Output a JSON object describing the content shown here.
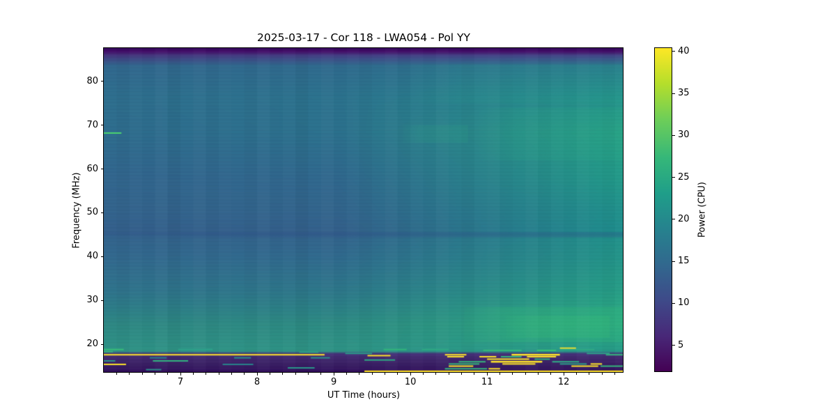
{
  "figure": {
    "title": "2025-03-17 - Cor 118 - LWA054 - Pol YY",
    "xlabel": "UT Time (hours)",
    "ylabel": "Frequency (MHz)",
    "colorbar_label": "Power (CPU)"
  },
  "chart_data": {
    "type": "heatmap",
    "title": "2025-03-17 - Cor 118 - LWA054 - Pol YY",
    "xlabel": "UT Time (hours)",
    "ylabel": "Frequency (MHz)",
    "colormap": "viridis",
    "x_range_hours": [
      6.0,
      12.78
    ],
    "y_range_mhz": [
      13.5,
      87.6
    ],
    "x_ticks": [
      7,
      8,
      9,
      10,
      11,
      12
    ],
    "x_minor_ticks_per_hour": 6,
    "y_ticks": [
      20,
      30,
      40,
      50,
      60,
      70,
      80
    ],
    "grid": false,
    "colorbar": {
      "label": "Power (CPU)",
      "ticks": [
        5,
        10,
        15,
        20,
        25,
        30,
        35,
        40
      ],
      "vmin": 1.9,
      "vmax": 40.4,
      "stops": [
        [
          0,
          "#440154"
        ],
        [
          0.11,
          "#482878"
        ],
        [
          0.22,
          "#3e4a89"
        ],
        [
          0.33,
          "#31688e"
        ],
        [
          0.44,
          "#26828e"
        ],
        [
          0.55,
          "#1f9e89"
        ],
        [
          0.66,
          "#35b779"
        ],
        [
          0.78,
          "#6ece58"
        ],
        [
          0.89,
          "#b5de2b"
        ],
        [
          1,
          "#fde725"
        ]
      ]
    },
    "notable_features": [
      "dark low-power band above ~85 MHz across all times",
      "dark low-power RFI band below ~18 MHz with bright yellow narrowband lines",
      "long yellow RFI line near 17.6 MHz from 6.0 to ~8.9 UT",
      "long yellow RFI line near 13.8 MHz from ~9.4 UT to end",
      "dense yellow/green RFI bursts 14-19 MHz between 10.4 and 12.5 UT",
      "short green emission line near 68 MHz at 6.0-6.2 UT",
      "broadband power increase (greener) toward later times, strongest 20-28 MHz after 10.7 UT",
      "faint dark horizontal lane near 45 MHz"
    ],
    "background_model": {
      "columns": [
        {
          "u": 0.0,
          "stops": [
            [
              87.6,
              "#33075c"
            ],
            [
              86.8,
              "#45106b"
            ],
            [
              85.8,
              "#453a80"
            ],
            [
              83.5,
              "#31688e"
            ],
            [
              76.5,
              "#2e6f8e"
            ],
            [
              68.3,
              "#2e6d8e"
            ],
            [
              58.0,
              "#32668e"
            ],
            [
              50.6,
              "#33648d"
            ],
            [
              45.2,
              "#345f8c"
            ],
            [
              44.8,
              "#33638d"
            ],
            [
              39.4,
              "#326a8e"
            ],
            [
              32.0,
              "#2f748c"
            ],
            [
              28.3,
              "#2d7d88"
            ],
            [
              24.6,
              "#2e8884"
            ],
            [
              20.0,
              "#2e9086"
            ],
            [
              18.4,
              "#2f9386"
            ],
            [
              17.8,
              "#473179"
            ],
            [
              17.0,
              "#432a71"
            ],
            [
              15.3,
              "#3a1f64"
            ],
            [
              14.2,
              "#341560"
            ],
            [
              13.5,
              "#2e0a55"
            ]
          ]
        },
        {
          "u": 0.45,
          "stops": [
            [
              87.6,
              "#33075c"
            ],
            [
              86.8,
              "#45106b"
            ],
            [
              85.8,
              "#444387"
            ],
            [
              83.5,
              "#2f6b8e"
            ],
            [
              76.5,
              "#2c738e"
            ],
            [
              68.3,
              "#2c728e"
            ],
            [
              58.0,
              "#30698e"
            ],
            [
              50.6,
              "#32658d"
            ],
            [
              45.2,
              "#34608c"
            ],
            [
              44.8,
              "#33648d"
            ],
            [
              39.4,
              "#306c8e"
            ],
            [
              32.0,
              "#2d788a"
            ],
            [
              28.3,
              "#2c8187"
            ],
            [
              24.6,
              "#2d8b83"
            ],
            [
              20.0,
              "#2e9286"
            ],
            [
              18.4,
              "#2e9486"
            ],
            [
              17.8,
              "#46307a"
            ],
            [
              17.0,
              "#422971"
            ],
            [
              15.3,
              "#3a1f64"
            ],
            [
              14.2,
              "#341560"
            ],
            [
              13.5,
              "#2e0a55"
            ]
          ]
        },
        {
          "u": 1.0,
          "stops": [
            [
              87.6,
              "#33075c"
            ],
            [
              86.8,
              "#45106b"
            ],
            [
              85.8,
              "#434a8a"
            ],
            [
              83.5,
              "#2a7d8e"
            ],
            [
              76.5,
              "#24938c"
            ],
            [
              68.3,
              "#26a086"
            ],
            [
              58.0,
              "#229a89"
            ],
            [
              50.6,
              "#20918c"
            ],
            [
              45.2,
              "#1f8e8d"
            ],
            [
              44.8,
              "#21928b"
            ],
            [
              39.4,
              "#239589"
            ],
            [
              32.0,
              "#269e86"
            ],
            [
              28.3,
              "#29a684"
            ],
            [
              24.6,
              "#2baa83"
            ],
            [
              20.0,
              "#27a187"
            ],
            [
              18.4,
              "#269c89"
            ],
            [
              17.8,
              "#46317a"
            ],
            [
              17.0,
              "#432a71"
            ],
            [
              15.3,
              "#3a1f64"
            ],
            [
              14.2,
              "#341560"
            ],
            [
              13.5,
              "#2e0a55"
            ]
          ]
        }
      ],
      "column_banding": {
        "period_hours": 0.16667,
        "alphas": [
          0.0,
          -0.02,
          0.01,
          -0.01,
          0.02,
          -0.03,
          0.0,
          0.02,
          -0.02,
          0.01,
          0.0,
          -0.02,
          0.02,
          -0.01,
          0.01,
          -0.03,
          0.0,
          0.02,
          -0.01,
          0.01,
          -0.02,
          0.0,
          0.02,
          -0.02,
          0.01,
          -0.01,
          0.02,
          0.0,
          -0.02,
          0.01,
          0.02,
          -0.01,
          0.0,
          0.02,
          -0.02,
          0.01,
          -0.01,
          0.02,
          0.0,
          -0.02,
          0.01
        ]
      },
      "bands": [
        {
          "mhz": [
            20.5,
            28.5
          ],
          "t": [
            10.7,
            12.78
          ],
          "color": "#36c177",
          "alpha": 0.22
        },
        {
          "mhz": [
            21.5,
            26.5
          ],
          "t": [
            11.25,
            12.6
          ],
          "color": "#40cc6f",
          "alpha": 0.15
        },
        {
          "mhz": [
            62,
            74
          ],
          "t": [
            10.9,
            12.78
          ],
          "color": "#2fbc85",
          "alpha": 0.1
        },
        {
          "mhz": [
            66,
            70
          ],
          "t": [
            9.9,
            10.75
          ],
          "color": "#33c17f",
          "alpha": 0.1
        },
        {
          "mhz": [
            75,
            84
          ],
          "t": [
            10.0,
            12.78
          ],
          "color": "#2dbb8d",
          "alpha": 0.08
        },
        {
          "mhz": [
            44.4,
            45.6
          ],
          "t": [
            6.0,
            12.78
          ],
          "color": "#2c4f86",
          "alpha": 0.3
        }
      ],
      "streaks": [
        [
          68.2,
          6.0,
          6.23,
          "#4cd36f",
          2
        ],
        [
          18.8,
          6.0,
          6.26,
          "#38bd7a",
          2
        ],
        [
          18.3,
          6.0,
          6.12,
          "#35b07e",
          2
        ],
        [
          18.8,
          6.97,
          7.42,
          "#2da18a",
          2
        ],
        [
          17.6,
          6.0,
          8.88,
          "#fde32a",
          2
        ],
        [
          16.9,
          6.6,
          6.82,
          "#27808c",
          2
        ],
        [
          16.2,
          6.64,
          7.1,
          "#31b27e",
          2
        ],
        [
          16.2,
          6.0,
          6.15,
          "#2a9487",
          2
        ],
        [
          15.4,
          6.0,
          6.29,
          "#fde32a",
          2
        ],
        [
          15.4,
          7.55,
          7.95,
          "#28838b",
          2
        ],
        [
          16.9,
          7.7,
          7.92,
          "#2b8d89",
          2
        ],
        [
          14.6,
          8.4,
          8.75,
          "#2b998a",
          2
        ],
        [
          18.2,
          8.55,
          8.8,
          "#2fa085",
          2
        ],
        [
          17.9,
          9.15,
          9.5,
          "#2b9a89",
          2
        ],
        [
          16.9,
          8.7,
          8.95,
          "#2a8f88",
          2
        ],
        [
          14.2,
          6.55,
          6.75,
          "#2b8e89",
          2
        ],
        [
          18.8,
          9.65,
          9.95,
          "#32b47c",
          2
        ],
        [
          18.8,
          10.15,
          10.5,
          "#2fa883",
          2
        ],
        [
          17.4,
          9.44,
          9.74,
          "#fde32a",
          2
        ],
        [
          16.4,
          9.4,
          9.8,
          "#2fa982",
          2
        ],
        [
          19.1,
          11.95,
          12.16,
          "#fde32a",
          2
        ],
        [
          18.6,
          10.95,
          11.45,
          "#35b77b",
          2
        ],
        [
          18.6,
          11.65,
          11.9,
          "#3bc273",
          2
        ],
        [
          18.8,
          11.95,
          12.4,
          "#30a984",
          2
        ],
        [
          17.6,
          10.45,
          10.73,
          "#fde32a",
          2
        ],
        [
          17.6,
          11.32,
          11.95,
          "#fde32a",
          2.5
        ],
        [
          17.6,
          12.55,
          12.78,
          "#35b77b",
          2
        ],
        [
          17.9,
          12.3,
          12.6,
          "#2fa08a",
          2
        ],
        [
          17.15,
          10.48,
          10.7,
          "#fde32a",
          2
        ],
        [
          17.15,
          10.9,
          11.12,
          "#fde32a",
          2
        ],
        [
          17.15,
          11.18,
          11.45,
          "#35b77b",
          2
        ],
        [
          17.15,
          11.52,
          11.9,
          "#fde32a",
          2
        ],
        [
          16.6,
          11.0,
          11.55,
          "#fde32a",
          2
        ],
        [
          16.6,
          11.62,
          11.82,
          "#35b77b",
          2
        ],
        [
          16.0,
          10.63,
          10.98,
          "#35b77b",
          2
        ],
        [
          16.0,
          11.05,
          11.72,
          "#fde32a",
          2.5
        ],
        [
          16.0,
          11.85,
          12.2,
          "#2fae85",
          2
        ],
        [
          15.5,
          10.5,
          10.9,
          "#35b77b",
          2
        ],
        [
          15.5,
          11.2,
          11.63,
          "#fde32a",
          2
        ],
        [
          15.5,
          11.95,
          12.3,
          "#2d9e88",
          2
        ],
        [
          15.5,
          12.35,
          12.5,
          "#fde32a",
          2
        ],
        [
          15.0,
          10.5,
          10.82,
          "#fde32a",
          2
        ],
        [
          15.0,
          12.1,
          12.45,
          "#fde32a",
          2
        ],
        [
          15.0,
          12.48,
          12.78,
          "#35b77b",
          2
        ],
        [
          14.4,
          10.45,
          11.0,
          "#35b77b",
          2
        ],
        [
          14.4,
          11.02,
          11.17,
          "#fde32a",
          2
        ],
        [
          13.8,
          9.4,
          12.78,
          "#fde229",
          2.5
        ]
      ]
    }
  }
}
